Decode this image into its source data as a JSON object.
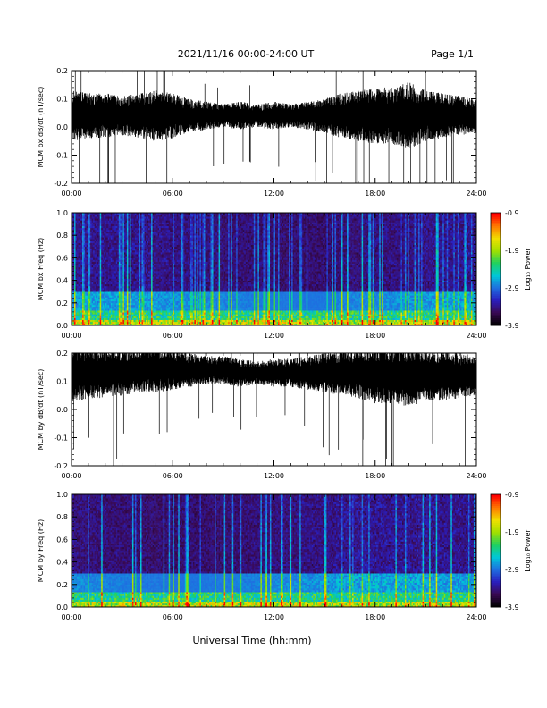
{
  "header": {
    "title": "2021/11/16  00:00-24:00 UT",
    "page": "Page 1/1"
  },
  "footer": {
    "xlabel": "Universal Time (hh:mm)"
  },
  "colorbar_label": "Log₁₀ Power",
  "colors": {
    "line": "#000000",
    "colormap": [
      "#000000",
      "#3a0a55",
      "#2a1fbf",
      "#1f6fe0",
      "#00c8d8",
      "#1fd060",
      "#a0e000",
      "#f0e000",
      "#ff7a00",
      "#ff0000"
    ]
  },
  "chart_data": [
    {
      "type": "line",
      "ylabel": "MCM bx dB/dt (nT/sec)",
      "xlim": [
        0,
        24
      ],
      "ylim": [
        -0.2,
        0.2
      ],
      "x_ticks": [
        "00:00",
        "06:00",
        "12:00",
        "18:00",
        "24:00"
      ],
      "y_ticks": [
        "-0.2",
        "-0.1",
        "0.0",
        "0.1",
        "0.2"
      ],
      "series": [
        {
          "x": [
            0,
            1,
            2,
            3,
            4,
            5,
            6,
            7,
            8,
            9,
            10,
            11,
            12,
            13,
            14,
            15,
            16,
            17,
            18,
            19,
            20,
            21,
            22,
            23,
            24
          ],
          "center": [
            0.04,
            0.04,
            0.04,
            0.04,
            0.04,
            0.04,
            0.04,
            0.04,
            0.04,
            0.04,
            0.04,
            0.04,
            0.04,
            0.04,
            0.04,
            0.04,
            0.04,
            0.04,
            0.04,
            0.04,
            0.04,
            0.04,
            0.04,
            0.04,
            0.04
          ],
          "amplitude": [
            0.09,
            0.08,
            0.08,
            0.07,
            0.08,
            0.09,
            0.08,
            0.06,
            0.05,
            0.04,
            0.05,
            0.04,
            0.05,
            0.04,
            0.05,
            0.06,
            0.08,
            0.09,
            0.1,
            0.1,
            0.12,
            0.09,
            0.08,
            0.07,
            0.06
          ]
        }
      ]
    },
    {
      "type": "heatmap",
      "ylabel": "MCM bx Freq (Hz)",
      "xlim": [
        0,
        24
      ],
      "ylim": [
        0,
        1.0
      ],
      "x_ticks": [
        "00:00",
        "06:00",
        "12:00",
        "18:00",
        "24:00"
      ],
      "y_ticks": [
        "0.0",
        "0.2",
        "0.4",
        "0.6",
        "0.8",
        "1.0"
      ],
      "colorbar": {
        "range": [
          -3.9,
          -0.9
        ],
        "ticks": [
          "-0.9",
          "-1.9",
          "-2.9",
          "-3.9"
        ]
      }
    },
    {
      "type": "line",
      "ylabel": "MCM by dB/dt (nT/sec)",
      "xlim": [
        0,
        24
      ],
      "ylim": [
        -0.2,
        0.2
      ],
      "x_ticks": [
        "00:00",
        "06:00",
        "12:00",
        "18:00",
        "24:00"
      ],
      "y_ticks": [
        "-0.2",
        "-0.1",
        "0.0",
        "0.1",
        "0.2"
      ],
      "series": [
        {
          "x": [
            0,
            1,
            2,
            3,
            4,
            5,
            6,
            7,
            8,
            9,
            10,
            11,
            12,
            13,
            14,
            15,
            16,
            17,
            18,
            19,
            20,
            21,
            22,
            23,
            24
          ],
          "center": [
            0.12,
            0.13,
            0.13,
            0.13,
            0.14,
            0.14,
            0.14,
            0.14,
            0.14,
            0.14,
            0.13,
            0.13,
            0.13,
            0.13,
            0.13,
            0.13,
            0.13,
            0.13,
            0.12,
            0.12,
            0.12,
            0.12,
            0.12,
            0.12,
            0.12
          ],
          "amplitude": [
            0.1,
            0.09,
            0.09,
            0.08,
            0.08,
            0.08,
            0.07,
            0.06,
            0.05,
            0.05,
            0.05,
            0.04,
            0.05,
            0.05,
            0.06,
            0.07,
            0.08,
            0.09,
            0.1,
            0.1,
            0.11,
            0.09,
            0.09,
            0.08,
            0.07
          ]
        }
      ]
    },
    {
      "type": "heatmap",
      "ylabel": "MCM by Freq (Hz)",
      "xlim": [
        0,
        24
      ],
      "ylim": [
        0,
        1.0
      ],
      "x_ticks": [
        "00:00",
        "06:00",
        "12:00",
        "18:00",
        "24:00"
      ],
      "y_ticks": [
        "0.0",
        "0.2",
        "0.4",
        "0.6",
        "0.8",
        "1.0"
      ],
      "colorbar": {
        "range": [
          -3.9,
          -0.9
        ],
        "ticks": [
          "-0.9",
          "-1.9",
          "-2.9",
          "-3.9"
        ]
      }
    }
  ]
}
